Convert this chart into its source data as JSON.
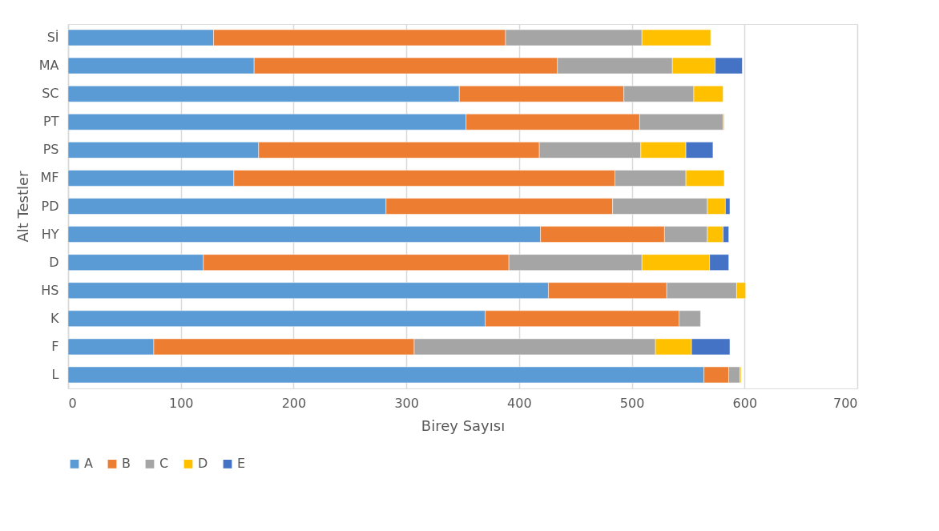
{
  "chart_data": {
    "type": "bar",
    "orientation": "horizontal",
    "stacked": true,
    "xlabel": "Birey Sayısı",
    "ylabel": "Alt Testler",
    "categories": [
      "Sİ",
      "MA",
      "SC",
      "PT",
      "PS",
      "MF",
      "PD",
      "HY",
      "D",
      "HS",
      "K",
      "F",
      "L"
    ],
    "series": [
      {
        "name": "A",
        "color": "#5b9bd5",
        "values": [
          129,
          165,
          347,
          353,
          169,
          147,
          282,
          419,
          120,
          426,
          370,
          76,
          564
        ]
      },
      {
        "name": "B",
        "color": "#ed7d31",
        "values": [
          259,
          269,
          146,
          154,
          249,
          338,
          201,
          110,
          271,
          105,
          172,
          231,
          22
        ]
      },
      {
        "name": "C",
        "color": "#a5a5a5",
        "values": [
          121,
          102,
          62,
          74,
          90,
          63,
          84,
          38,
          118,
          62,
          19,
          214,
          10
        ]
      },
      {
        "name": "D",
        "color": "#ffc000",
        "values": [
          61,
          38,
          26,
          1,
          40,
          34,
          16,
          14,
          60,
          8,
          null,
          32,
          1
        ]
      },
      {
        "name": "E",
        "color": "#4472c4",
        "values": [
          null,
          24,
          null,
          null,
          24,
          null,
          4,
          5,
          17,
          null,
          null,
          34,
          null
        ]
      }
    ],
    "xlim": [
      0,
      700
    ],
    "xticks": [
      0,
      100,
      200,
      300,
      400,
      500,
      600,
      700
    ],
    "grid": "x",
    "legend": "bottom"
  }
}
